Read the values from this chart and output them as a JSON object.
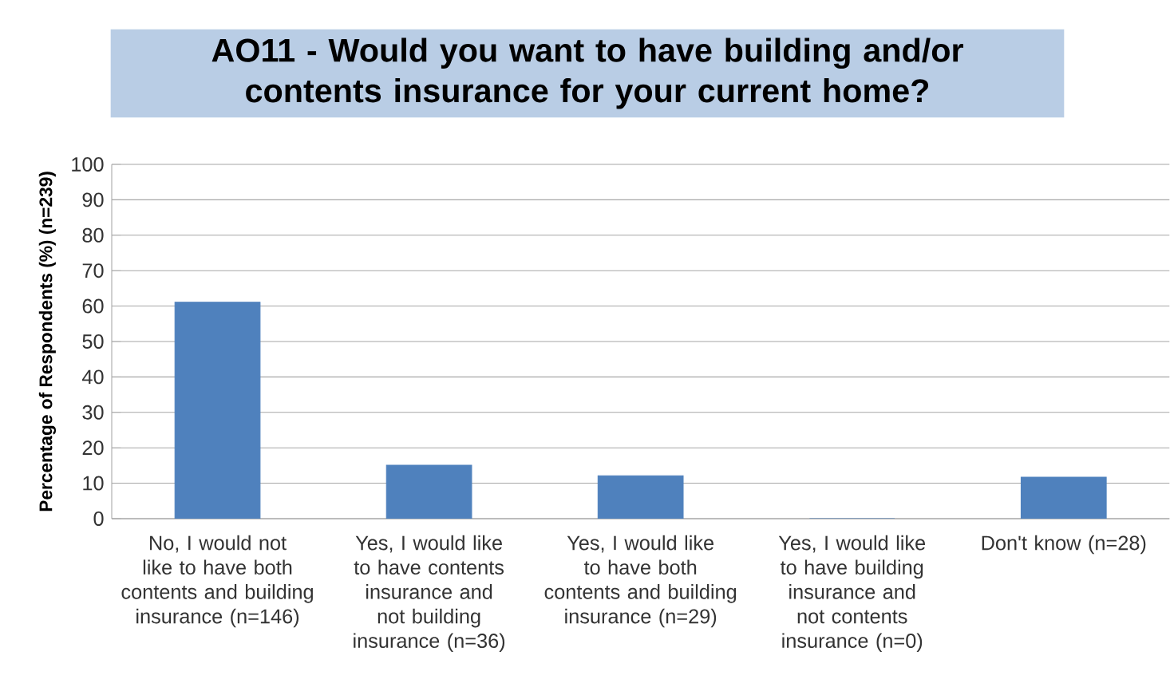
{
  "chart_data": {
    "type": "bar",
    "title": "AO11 - Would you want to have building and/or contents insurance for your current home?",
    "ylabel": "Percentage of Respondents (%) (n=239)",
    "categories": [
      "No, I would not like to have both contents and building insurance (n=146)",
      "Yes, I would like to have contents insurance and not building insurance (n=36)",
      "Yes, I would like to have both contents and building insurance (n=29)",
      "Yes, I would like to have building insurance and not contents insurance (n=0)",
      "Don't know (n=28)"
    ],
    "values": [
      61.1,
      15.1,
      12.1,
      0,
      11.7
    ],
    "color": "#4f81bd",
    "ylim": [
      0,
      100
    ],
    "yticks": [
      0,
      10,
      20,
      30,
      40,
      50,
      60,
      70,
      80,
      90,
      100
    ],
    "grid": "y"
  }
}
